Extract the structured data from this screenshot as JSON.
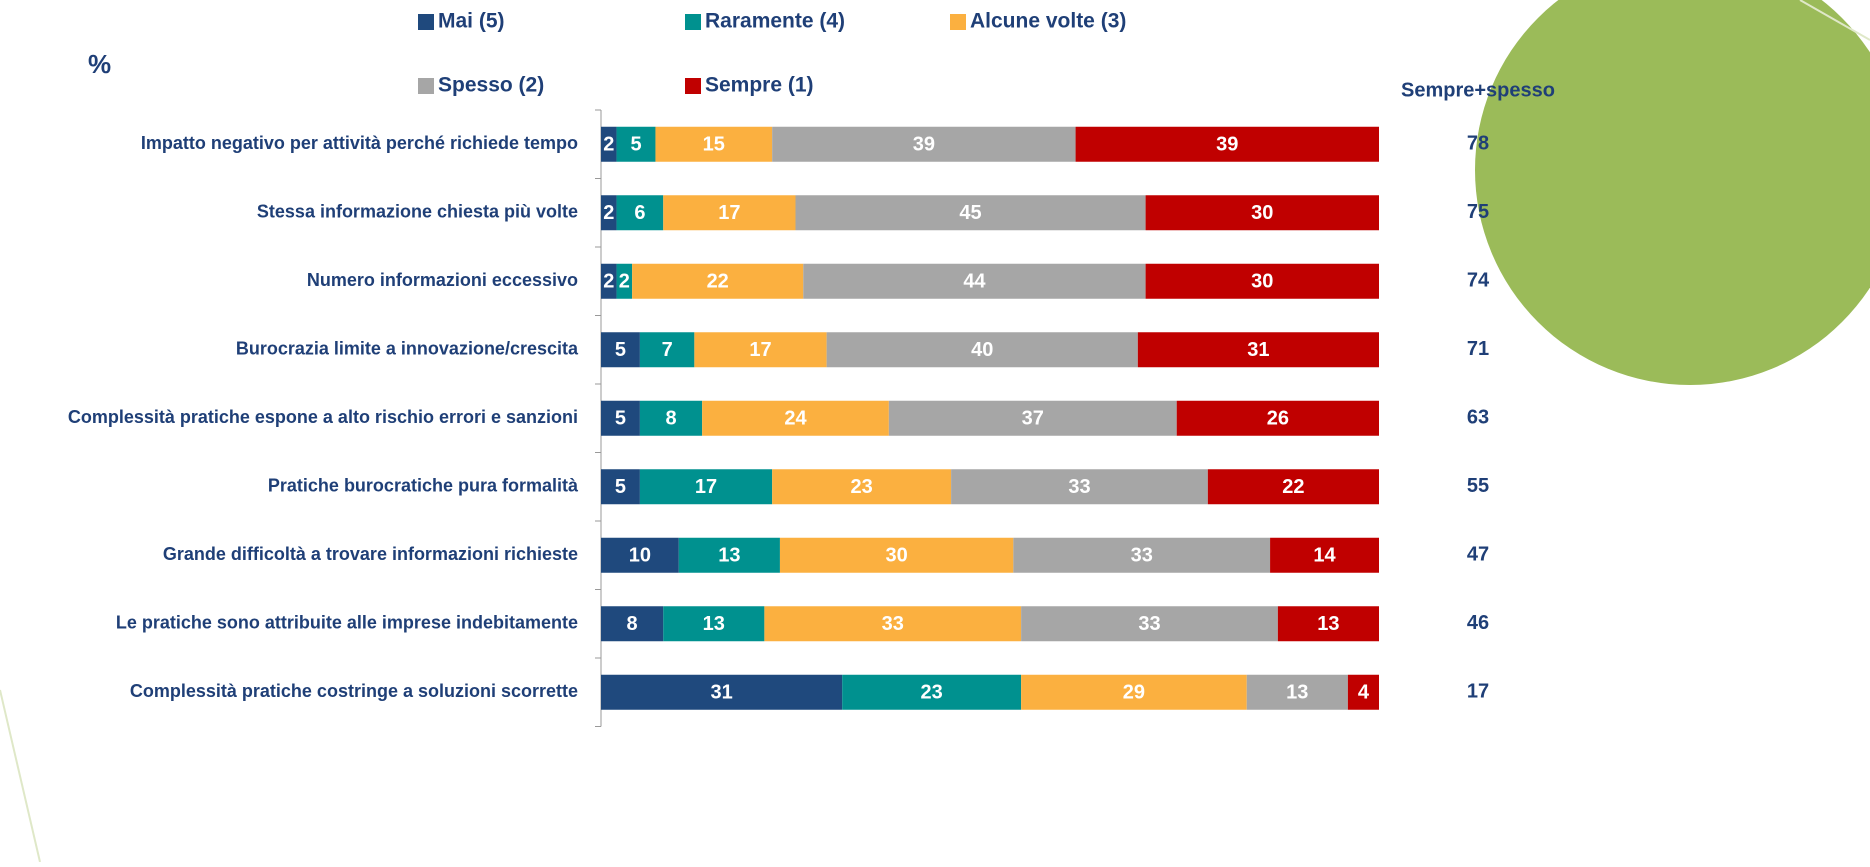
{
  "chart_data": {
    "type": "stacked-bar-horizontal",
    "unit_label": "%",
    "categories": [
      "Impatto negativo per attività perché richiede tempo",
      "Stessa informazione chiesta più volte",
      "Numero informazioni eccessivo",
      "Burocrazia limite a innovazione/crescita",
      "Complessità pratiche espone a alto rischio errori e sanzioni",
      "Pratiche burocratiche pura formalità",
      "Grande difficoltà a trovare informazioni richieste",
      "Le pratiche sono attribuite alle imprese indebitamente",
      "Complessità pratiche costringe a soluzioni scorrette"
    ],
    "series": [
      {
        "name": "Mai (5)",
        "color": "#1f497d",
        "values": [
          2,
          2,
          2,
          5,
          5,
          5,
          10,
          8,
          31
        ]
      },
      {
        "name": "Raramente (4)",
        "color": "#00918f",
        "values": [
          5,
          6,
          2,
          7,
          8,
          17,
          13,
          13,
          23
        ]
      },
      {
        "name": "Alcune volte (3)",
        "color": "#fbb040",
        "values": [
          15,
          17,
          22,
          17,
          24,
          23,
          30,
          33,
          29
        ]
      },
      {
        "name": "Spesso (2)",
        "color": "#a6a6a6",
        "values": [
          39,
          45,
          44,
          40,
          37,
          33,
          33,
          33,
          13
        ]
      },
      {
        "name": "Sempre (1)",
        "color": "#c00000",
        "values": [
          39,
          30,
          30,
          31,
          26,
          22,
          14,
          13,
          4
        ]
      }
    ],
    "xlim": [
      0,
      100
    ],
    "totals": {
      "label": "Sempre+spesso",
      "values": [
        78,
        75,
        74,
        71,
        63,
        55,
        47,
        46,
        17
      ]
    }
  }
}
